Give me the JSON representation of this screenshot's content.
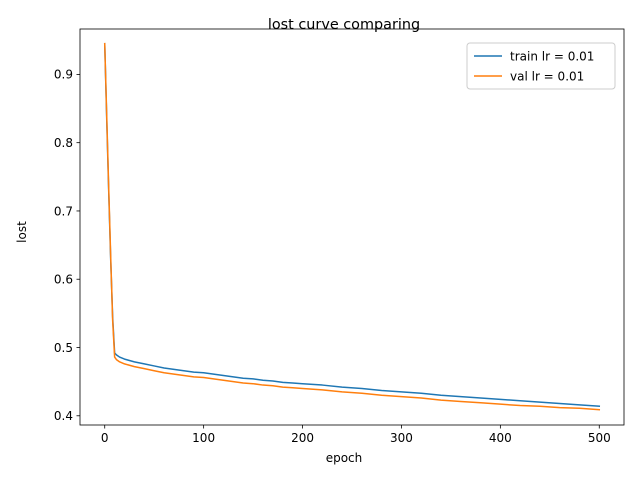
{
  "chart_data": {
    "type": "line",
    "title": "lost curve comparing",
    "xlabel": "epoch",
    "ylabel": "lost",
    "xlim": [
      -25,
      525
    ],
    "ylim": [
      0.3865,
      0.9665
    ],
    "xticks": [
      0,
      100,
      200,
      300,
      400,
      500
    ],
    "yticks": [
      0.4,
      0.5,
      0.6,
      0.7,
      0.8,
      0.9
    ],
    "ytick_labels": [
      "0.4",
      "0.5",
      "0.6",
      "0.7",
      "0.8",
      "0.9"
    ],
    "grid": false,
    "legend_position": "top-right",
    "series": [
      {
        "name": "train lr = 0.01",
        "color": "#1f77b4",
        "x": [
          0,
          2,
          4,
          6,
          8,
          10,
          12,
          15,
          20,
          25,
          30,
          40,
          50,
          60,
          70,
          80,
          90,
          100,
          110,
          120,
          130,
          140,
          150,
          160,
          170,
          180,
          190,
          200,
          220,
          240,
          260,
          280,
          300,
          320,
          340,
          360,
          380,
          400,
          420,
          440,
          460,
          480,
          500
        ],
        "values": [
          0.945,
          0.835,
          0.73,
          0.63,
          0.545,
          0.492,
          0.489,
          0.486,
          0.483,
          0.481,
          0.479,
          0.476,
          0.473,
          0.47,
          0.468,
          0.466,
          0.464,
          0.463,
          0.461,
          0.459,
          0.457,
          0.455,
          0.454,
          0.452,
          0.451,
          0.449,
          0.448,
          0.447,
          0.445,
          0.442,
          0.44,
          0.437,
          0.435,
          0.433,
          0.43,
          0.428,
          0.426,
          0.424,
          0.422,
          0.42,
          0.418,
          0.416,
          0.414
        ]
      },
      {
        "name": "val lr = 0.01",
        "color": "#ff7f0e",
        "x": [
          0,
          2,
          4,
          6,
          8,
          10,
          12,
          15,
          20,
          25,
          30,
          40,
          50,
          60,
          70,
          80,
          90,
          100,
          110,
          120,
          130,
          140,
          150,
          160,
          170,
          180,
          190,
          200,
          220,
          240,
          260,
          280,
          300,
          320,
          340,
          360,
          380,
          400,
          420,
          440,
          460,
          480,
          500
        ],
        "values": [
          0.945,
          0.84,
          0.735,
          0.635,
          0.54,
          0.486,
          0.482,
          0.479,
          0.476,
          0.474,
          0.472,
          0.469,
          0.466,
          0.463,
          0.461,
          0.459,
          0.457,
          0.456,
          0.454,
          0.452,
          0.45,
          0.448,
          0.447,
          0.445,
          0.444,
          0.442,
          0.441,
          0.44,
          0.438,
          0.435,
          0.433,
          0.43,
          0.428,
          0.426,
          0.423,
          0.421,
          0.419,
          0.417,
          0.415,
          0.414,
          0.412,
          0.411,
          0.409
        ]
      }
    ]
  }
}
